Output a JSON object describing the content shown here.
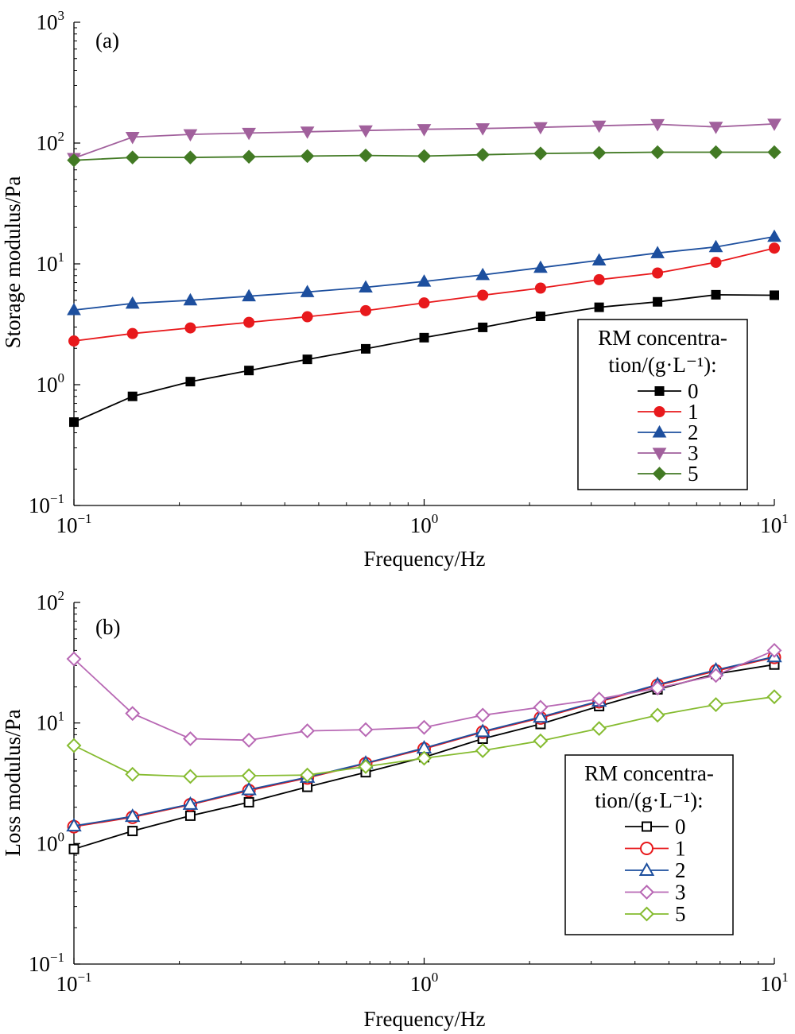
{
  "chart_data": [
    {
      "type": "line",
      "panel_label": "(a)",
      "xlabel": "Frequency/Hz",
      "ylabel": "Storage modulus/Pa",
      "xscale": "log",
      "yscale": "log",
      "xlim": [
        0.1,
        10
      ],
      "ylim": [
        0.1,
        1000
      ],
      "x_ticks": [
        {
          "base": "10",
          "exp": "−1",
          "value": 0.1
        },
        {
          "base": "10",
          "exp": "0",
          "value": 1
        },
        {
          "base": "10",
          "exp": "1",
          "value": 10
        }
      ],
      "y_ticks": [
        {
          "base": "10",
          "exp": "−1",
          "value": 0.1
        },
        {
          "base": "10",
          "exp": "0",
          "value": 1
        },
        {
          "base": "10",
          "exp": "1",
          "value": 10
        },
        {
          "base": "10",
          "exp": "2",
          "value": 100
        },
        {
          "base": "10",
          "exp": "3",
          "value": 1000
        }
      ],
      "grid": false,
      "legend": {
        "placement": "bottom-right",
        "title_line1": "RM concentra-",
        "title_line2": "tion/(g·L⁻¹):"
      },
      "x": [
        0.1,
        0.147,
        0.215,
        0.316,
        0.464,
        0.681,
        1.0,
        1.47,
        2.15,
        3.16,
        4.64,
        6.81,
        10.0
      ],
      "series": [
        {
          "name": "0",
          "color": "#000000",
          "marker": "square",
          "filled": true,
          "values": [
            0.49,
            0.8,
            1.06,
            1.31,
            1.62,
            1.98,
            2.45,
            2.98,
            3.68,
            4.37,
            4.85,
            5.55,
            5.5
          ]
        },
        {
          "name": "1",
          "color": "#e8191c",
          "marker": "circle",
          "filled": true,
          "values": [
            2.3,
            2.65,
            2.95,
            3.28,
            3.65,
            4.1,
            4.75,
            5.5,
            6.3,
            7.4,
            8.4,
            10.3,
            13.5
          ]
        },
        {
          "name": "2",
          "color": "#1d4f9e",
          "marker": "triangle-up",
          "filled": true,
          "values": [
            4.15,
            4.7,
            5.0,
            5.4,
            5.85,
            6.4,
            7.15,
            8.1,
            9.3,
            10.7,
            12.3,
            13.8,
            16.8
          ]
        },
        {
          "name": "3",
          "color": "#a1609c",
          "marker": "triangle-down",
          "filled": true,
          "values": [
            75,
            112,
            118,
            121,
            124,
            127,
            130,
            132,
            135,
            139,
            143,
            136,
            144
          ]
        },
        {
          "name": "5",
          "color": "#427a24",
          "marker": "diamond",
          "filled": true,
          "values": [
            72,
            76,
            76,
            77,
            78,
            79,
            78,
            80,
            82,
            83,
            84,
            84,
            84
          ]
        }
      ]
    },
    {
      "type": "line",
      "panel_label": "(b)",
      "xlabel": "Frequency/Hz",
      "ylabel": "Loss modulus/Pa",
      "xscale": "log",
      "yscale": "log",
      "xlim": [
        0.1,
        10
      ],
      "ylim": [
        0.1,
        100
      ],
      "x_ticks": [
        {
          "base": "10",
          "exp": "−1",
          "value": 0.1
        },
        {
          "base": "10",
          "exp": "0",
          "value": 1
        },
        {
          "base": "10",
          "exp": "1",
          "value": 10
        }
      ],
      "y_ticks": [
        {
          "base": "10",
          "exp": "−1",
          "value": 0.1
        },
        {
          "base": "10",
          "exp": "0",
          "value": 1
        },
        {
          "base": "10",
          "exp": "1",
          "value": 10
        },
        {
          "base": "10",
          "exp": "2",
          "value": 100
        }
      ],
      "grid": false,
      "legend": {
        "placement": "bottom-right",
        "title_line1": "RM concentra-",
        "title_line2": "tion/(g·L⁻¹):"
      },
      "x": [
        0.1,
        0.147,
        0.215,
        0.316,
        0.464,
        0.681,
        1.0,
        1.47,
        2.15,
        3.16,
        4.64,
        6.81,
        10.0
      ],
      "series": [
        {
          "name": "0",
          "color": "#000000",
          "marker": "square",
          "filled": false,
          "values": [
            0.9,
            1.27,
            1.7,
            2.2,
            2.95,
            3.9,
            5.2,
            7.4,
            9.8,
            13.8,
            19.0,
            25.5,
            30.5
          ]
        },
        {
          "name": "1",
          "color": "#e8191c",
          "marker": "circle",
          "filled": false,
          "values": [
            1.38,
            1.65,
            2.1,
            2.75,
            3.5,
            4.6,
            6.1,
            8.4,
            11.0,
            15.0,
            20.5,
            27.0,
            35.0
          ]
        },
        {
          "name": "2",
          "color": "#1d4f9e",
          "marker": "triangle-up",
          "filled": false,
          "values": [
            1.4,
            1.68,
            2.12,
            2.8,
            3.55,
            4.65,
            6.2,
            8.5,
            11.2,
            15.2,
            20.8,
            27.5,
            35.5
          ]
        },
        {
          "name": "3",
          "color": "#b868b4",
          "marker": "diamond",
          "filled": false,
          "values": [
            34.0,
            12.0,
            7.4,
            7.2,
            8.6,
            8.8,
            9.2,
            11.6,
            13.5,
            15.8,
            19.5,
            24.8,
            40.0
          ]
        },
        {
          "name": "5",
          "color": "#85bb2f",
          "marker": "diamond",
          "filled": false,
          "values": [
            6.5,
            3.75,
            3.6,
            3.65,
            3.7,
            4.35,
            5.1,
            5.9,
            7.1,
            9.0,
            11.6,
            14.2,
            16.5
          ]
        }
      ]
    }
  ]
}
